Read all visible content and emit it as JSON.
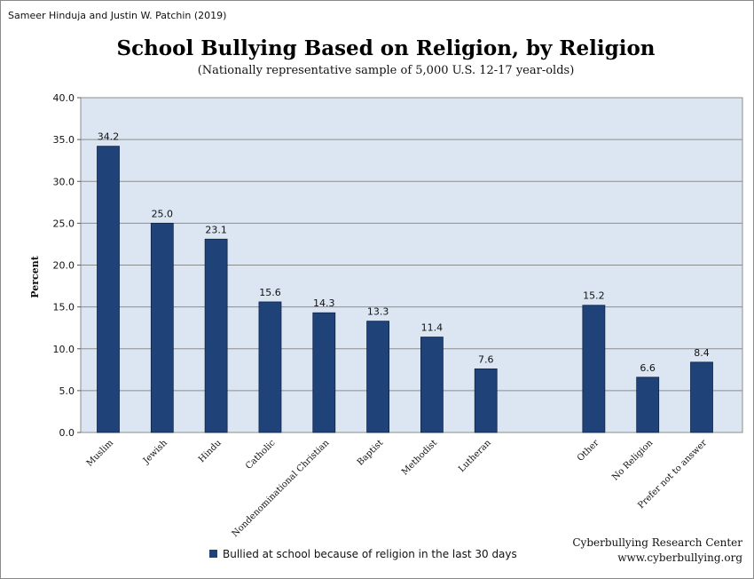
{
  "credit": "Sameer Hinduja and Justin W. Patchin (2019)",
  "source": {
    "line1": "Cyberbullying Research Center",
    "line2": "www.cyberbullying.org"
  },
  "colors": {
    "bar": "#1f4378",
    "plot_bg": "#dce6f2",
    "grid": "#8c8c8c"
  },
  "chart_data": {
    "type": "bar",
    "title": "School Bullying Based on Religion, by Religion",
    "subtitle": "(Nationally representative sample of 5,000 U.S. 12-17 year-olds)",
    "xlabel": "",
    "ylabel": "Percent",
    "ylim": [
      0,
      40
    ],
    "yticks": [
      "0.0",
      "5.0",
      "10.0",
      "15.0",
      "20.0",
      "25.0",
      "30.0",
      "35.0",
      "40.0"
    ],
    "grid": true,
    "legend_position": "bottom",
    "categories": [
      "Muslim",
      "Jewish",
      "Hindu",
      "Catholic",
      "Nondenominational Christian",
      "Baptist",
      "Methodist",
      "Lutheran",
      "",
      "Other",
      "No Religion",
      "Prefer not to answer"
    ],
    "series": [
      {
        "name": "Bullied at school because of religion in the last 30 days",
        "values": [
          34.2,
          25.0,
          23.1,
          15.6,
          14.3,
          13.3,
          11.4,
          7.6,
          null,
          15.2,
          6.6,
          8.4
        ],
        "labels": [
          "34.2",
          "25.0",
          "23.1",
          "15.6",
          "14.3",
          "13.3",
          "11.4",
          "7.6",
          "",
          "15.2",
          "6.6",
          "8.4"
        ]
      }
    ]
  }
}
